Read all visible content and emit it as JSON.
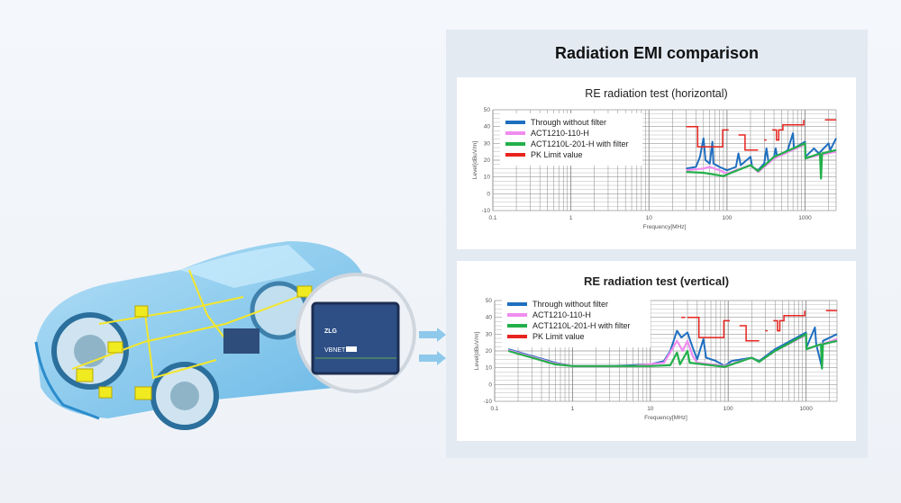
{
  "panel_title": "Radiation EMI comparison",
  "device": {
    "brand": "ZLG",
    "product": "VBNET"
  },
  "colors": {
    "through": "#1f6fc0",
    "act110": "#f08cf0",
    "act201": "#22b04a",
    "limit": "#e8231e"
  },
  "chart_data": [
    {
      "type": "line",
      "title": "RE radiation test (horizontal)",
      "xlabel": "Frequency[MHz]",
      "ylabel": "Level[dBuV/m]",
      "xscale": "log",
      "xlim": [
        0.1,
        2500
      ],
      "ylim": [
        -10,
        50
      ],
      "xticks": [
        "0.1",
        "1",
        "10",
        "100",
        "1000"
      ],
      "yticks": [
        "-10",
        "0",
        "10",
        "20",
        "30",
        "40",
        "50"
      ],
      "grid": true,
      "legend": "top-left",
      "series": [
        {
          "name": "Through without filter",
          "key": "through",
          "points": [
            [
              30,
              15
            ],
            [
              40,
              16
            ],
            [
              45,
              22
            ],
            [
              50,
              33
            ],
            [
              53,
              20
            ],
            [
              60,
              18
            ],
            [
              65,
              31
            ],
            [
              67,
              18
            ],
            [
              80,
              16
            ],
            [
              100,
              14
            ],
            [
              130,
              16
            ],
            [
              140,
              24
            ],
            [
              150,
              17
            ],
            [
              200,
              22
            ],
            [
              210,
              16
            ],
            [
              250,
              14
            ],
            [
              300,
              18
            ],
            [
              320,
              27
            ],
            [
              340,
              19
            ],
            [
              400,
              22
            ],
            [
              420,
              27
            ],
            [
              440,
              22
            ],
            [
              600,
              26
            ],
            [
              700,
              36
            ],
            [
              720,
              27
            ],
            [
              1000,
              31
            ],
            [
              1010,
              22
            ],
            [
              1300,
              27
            ],
            [
              1500,
              24
            ],
            [
              2000,
              30
            ],
            [
              2100,
              26
            ],
            [
              2500,
              33
            ]
          ]
        },
        {
          "name": "ACT1210-110-H",
          "key": "act110",
          "points": [
            [
              30,
              14
            ],
            [
              50,
              15
            ],
            [
              60,
              16
            ],
            [
              80,
              14
            ],
            [
              100,
              12
            ],
            [
              150,
              15
            ],
            [
              200,
              17
            ],
            [
              250,
              13
            ],
            [
              400,
              21
            ],
            [
              1000,
              29.5
            ],
            [
              1010,
              21
            ],
            [
              1500,
              23
            ],
            [
              2500,
              25
            ]
          ]
        },
        {
          "name": "ACT1210L-201-H with filter",
          "key": "act201",
          "points": [
            [
              30,
              13
            ],
            [
              50,
              12.5
            ],
            [
              90,
              10.5
            ],
            [
              120,
              13
            ],
            [
              200,
              17
            ],
            [
              250,
              13.5
            ],
            [
              400,
              22
            ],
            [
              1000,
              30
            ],
            [
              1010,
              21
            ],
            [
              1550,
              24
            ],
            [
              1600,
              9
            ],
            [
              1650,
              24
            ],
            [
              2500,
              26
            ]
          ]
        },
        {
          "name": "PK Limit value",
          "key": "limit",
          "segments": [
            [
              [
                30,
                40
              ],
              [
                42,
                40
              ],
              [
                42,
                28
              ],
              [
                88,
                28
              ],
              [
                88,
                38
              ],
              [
                105,
                38
              ]
            ],
            [
              [
                140,
                35
              ],
              [
                170,
                35
              ],
              [
                170,
                26
              ],
              [
                250,
                26
              ]
            ],
            [
              [
                300,
                32
              ],
              [
                320,
                32
              ]
            ],
            [
              [
                380,
                38
              ],
              [
                430,
                38
              ],
              [
                430,
                32
              ],
              [
                460,
                32
              ],
              [
                460,
                38
              ],
              [
                520,
                38
              ],
              [
                520,
                41
              ],
              [
                960,
                41
              ],
              [
                960,
                44
              ]
            ],
            [
              [
                1800,
                44
              ],
              [
                2500,
                44
              ]
            ]
          ]
        }
      ]
    },
    {
      "type": "line",
      "title": "RE radiation test (vertical)",
      "xlabel": "Frequency[MHz]",
      "ylabel": "Level[dBuV/m]",
      "xscale": "log",
      "xlim": [
        0.1,
        2500
      ],
      "ylim": [
        -10,
        50
      ],
      "xticks": [
        "0.1",
        "1",
        "10",
        "100",
        "1000"
      ],
      "yticks": [
        "-10",
        "0",
        "10",
        "20",
        "30",
        "40",
        "50"
      ],
      "grid": true,
      "legend": "top-left",
      "series": [
        {
          "name": "Through without filter",
          "key": "through",
          "points": [
            [
              0.15,
              21
            ],
            [
              0.3,
              17
            ],
            [
              0.6,
              13
            ],
            [
              1,
              11
            ],
            [
              3,
              11
            ],
            [
              6,
              11.5
            ],
            [
              10,
              12
            ],
            [
              15,
              14
            ],
            [
              18,
              20
            ],
            [
              22,
              32
            ],
            [
              25,
              28
            ],
            [
              30,
              31
            ],
            [
              35,
              22
            ],
            [
              40,
              15
            ],
            [
              48,
              27
            ],
            [
              52,
              16
            ],
            [
              70,
              14
            ],
            [
              90,
              11
            ],
            [
              110,
              14
            ],
            [
              200,
              16
            ],
            [
              250,
              14
            ],
            [
              400,
              21
            ],
            [
              1000,
              31
            ],
            [
              1010,
              22
            ],
            [
              1300,
              34
            ],
            [
              1350,
              24
            ],
            [
              1600,
              10
            ],
            [
              1650,
              26
            ],
            [
              2500,
              30
            ]
          ]
        },
        {
          "name": "ACT1210-110-H",
          "key": "act110",
          "points": [
            [
              0.15,
              20.5
            ],
            [
              0.6,
              12.5
            ],
            [
              1,
              11
            ],
            [
              6,
              11
            ],
            [
              15,
              13
            ],
            [
              22,
              26
            ],
            [
              26,
              20
            ],
            [
              30,
              26
            ],
            [
              35,
              17
            ],
            [
              40,
              13
            ],
            [
              90,
              11
            ],
            [
              200,
              16
            ],
            [
              250,
              13.5
            ],
            [
              400,
              20
            ],
            [
              1000,
              29.5
            ],
            [
              1010,
              21
            ],
            [
              2500,
              27
            ]
          ]
        },
        {
          "name": "ACT1210L-201-H with filter",
          "key": "act201",
          "points": [
            [
              0.15,
              20
            ],
            [
              0.6,
              12
            ],
            [
              1,
              11
            ],
            [
              10,
              11
            ],
            [
              18,
              11.5
            ],
            [
              22,
              19
            ],
            [
              24,
              12
            ],
            [
              30,
              20
            ],
            [
              32,
              13
            ],
            [
              90,
              10.5
            ],
            [
              200,
              16
            ],
            [
              250,
              13.5
            ],
            [
              400,
              20
            ],
            [
              1000,
              30
            ],
            [
              1010,
              21
            ],
            [
              1550,
              24
            ],
            [
              1600,
              9.5
            ],
            [
              1650,
              24
            ],
            [
              2500,
              26
            ]
          ]
        },
        {
          "name": "PK Limit value",
          "key": "limit",
          "segments": [
            [
              [
                5.8,
                40
              ],
              [
                6.2,
                40
              ]
            ],
            [
              [
                25,
                40
              ],
              [
                28,
                40
              ]
            ],
            [
              [
                30,
                40
              ],
              [
                42,
                40
              ],
              [
                42,
                28
              ],
              [
                88,
                28
              ],
              [
                88,
                38
              ],
              [
                105,
                38
              ]
            ],
            [
              [
                140,
                35
              ],
              [
                170,
                35
              ],
              [
                170,
                26
              ],
              [
                250,
                26
              ]
            ],
            [
              [
                300,
                32
              ],
              [
                320,
                32
              ]
            ],
            [
              [
                380,
                38
              ],
              [
                430,
                38
              ],
              [
                430,
                32
              ],
              [
                460,
                32
              ],
              [
                460,
                38
              ],
              [
                520,
                38
              ],
              [
                520,
                41
              ],
              [
                960,
                41
              ],
              [
                960,
                44
              ]
            ],
            [
              [
                1800,
                44
              ],
              [
                2500,
                44
              ]
            ]
          ]
        }
      ]
    }
  ]
}
